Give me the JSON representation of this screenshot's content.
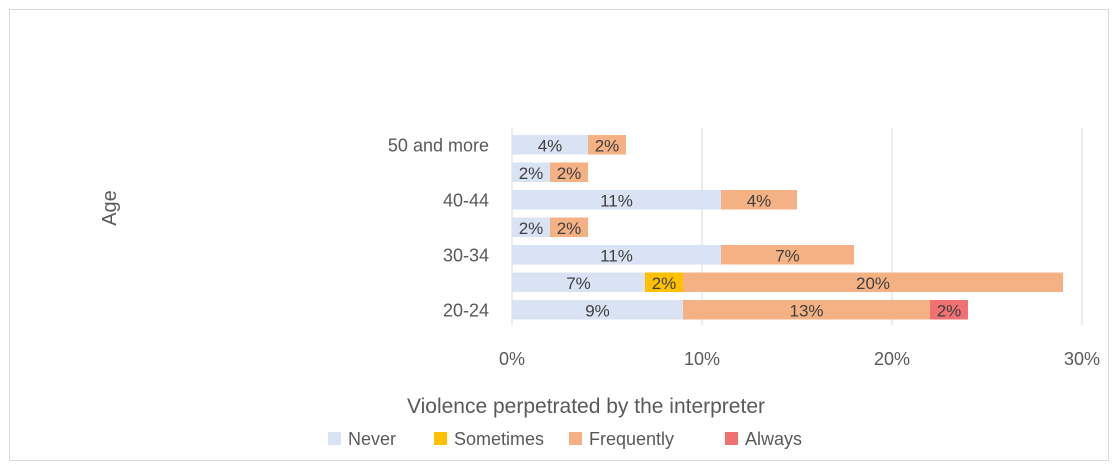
{
  "chart_data": {
    "type": "bar",
    "orientation": "horizontal",
    "stacked": true,
    "categories": [
      "20-24",
      "",
      "30-34",
      "",
      "40-44",
      "",
      "50 and more"
    ],
    "series": [
      {
        "name": "Never",
        "color": "#dae3f3",
        "values": [
          9,
          7,
          11,
          2,
          11,
          2,
          4
        ]
      },
      {
        "name": "Sometimes",
        "color": "#ffc000",
        "values": [
          0,
          2,
          0,
          0,
          0,
          0,
          0
        ]
      },
      {
        "name": "Frequently",
        "color": "#f4b183",
        "values": [
          13,
          20,
          7,
          2,
          4,
          2,
          2
        ]
      },
      {
        "name": "Always",
        "color": "#f07171",
        "values": [
          2,
          0,
          0,
          0,
          0,
          0,
          0
        ]
      }
    ],
    "xlim": [
      0,
      30
    ],
    "xticks": [
      0,
      10,
      20,
      30
    ],
    "tick_format": "percent",
    "xlabel": "Violence perpetrated by the interpreter",
    "ylabel": "Age",
    "grid": "vertical",
    "legend_position": "bottom"
  }
}
